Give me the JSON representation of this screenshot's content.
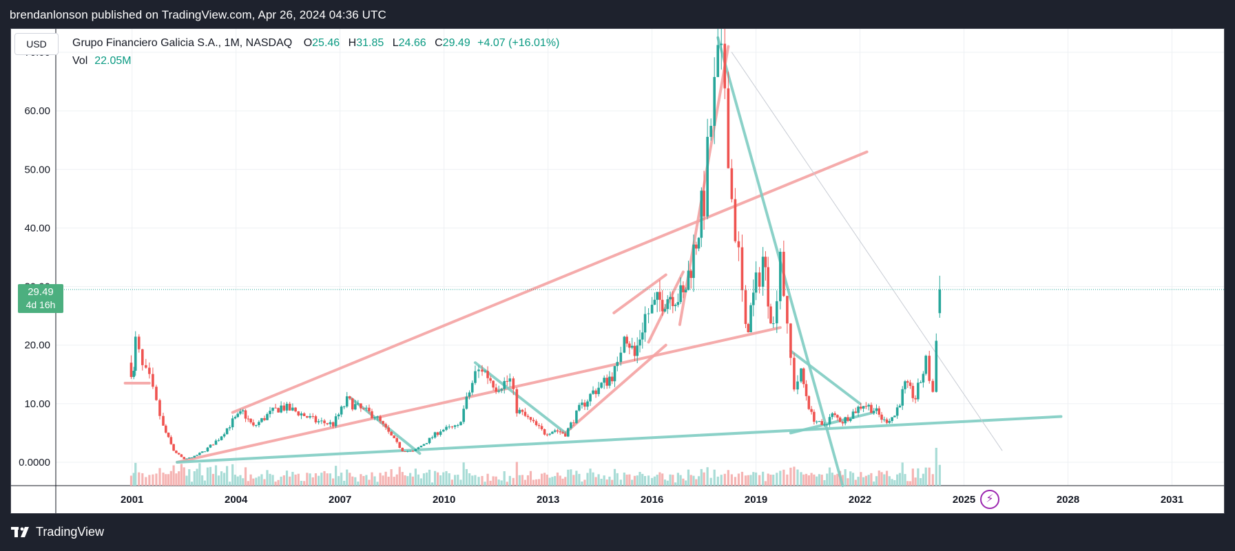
{
  "header": {
    "title": "brendanlonson published on TradingView.com, Apr 26, 2024 04:36 UTC"
  },
  "toolbar": {
    "currency": "USD"
  },
  "legend": {
    "symbol": "Grupo Financiero Galicia S.A., 1M, NASDAQ",
    "open_label": "O",
    "open": "25.46",
    "high_label": "H",
    "high": "31.85",
    "low_label": "L",
    "low": "24.66",
    "close_label": "C",
    "close": "29.49",
    "change": "+4.07 (+16.01%)",
    "vol_label": "Vol",
    "vol": "22.05M"
  },
  "price_tag": {
    "price": "29.49",
    "countdown": "4d 16h"
  },
  "footer": {
    "brand": "TradingView"
  },
  "colors": {
    "up": "#26a69a",
    "down": "#ef5350",
    "trend_red": "#f4a3a3",
    "trend_teal": "#7fcdc3",
    "price_tag": "#4caf7f",
    "accent_green": "#089981"
  },
  "chart_data": {
    "type": "candlestick",
    "interval": "1M",
    "y_ticks": [
      "70.00",
      "60.00",
      "50.00",
      "40.00",
      "30.00",
      "20.00",
      "10.00",
      "0.0000"
    ],
    "x_ticks": [
      "2001",
      "2004",
      "2007",
      "2010",
      "2013",
      "2016",
      "2019",
      "2022",
      "2025",
      "2028",
      "2031"
    ],
    "ylim": [
      -4,
      74
    ],
    "xlim": [
      1998.8,
      2032.5
    ],
    "last_close": 29.49,
    "price_path": [
      [
        2000.9,
        17
      ],
      [
        2001.05,
        15
      ],
      [
        2001.1,
        20.5
      ],
      [
        2001.3,
        16
      ],
      [
        2001.5,
        14
      ],
      [
        2001.7,
        10
      ],
      [
        2001.9,
        6
      ],
      [
        2002.2,
        2
      ],
      [
        2002.5,
        0.5
      ],
      [
        2002.8,
        1
      ],
      [
        2003.1,
        2
      ],
      [
        2003.5,
        4
      ],
      [
        2003.9,
        7
      ],
      [
        2004.2,
        8.5
      ],
      [
        2004.5,
        6
      ],
      [
        2004.9,
        8
      ],
      [
        2005.3,
        9.5
      ],
      [
        2005.8,
        8.5
      ],
      [
        2006.3,
        7
      ],
      [
        2006.8,
        6.5
      ],
      [
        2007.2,
        10.5
      ],
      [
        2007.6,
        9
      ],
      [
        2008.0,
        8
      ],
      [
        2008.4,
        5
      ],
      [
        2008.8,
        2
      ],
      [
        2009.1,
        1.8
      ],
      [
        2009.5,
        3.5
      ],
      [
        2009.9,
        5.5
      ],
      [
        2010.4,
        6
      ],
      [
        2010.9,
        15
      ],
      [
        2011.1,
        16
      ],
      [
        2011.5,
        13
      ],
      [
        2011.9,
        14
      ],
      [
        2012.1,
        9
      ],
      [
        2012.5,
        7
      ],
      [
        2012.9,
        5
      ],
      [
        2013.2,
        5.5
      ],
      [
        2013.5,
        4.8
      ],
      [
        2013.9,
        9
      ],
      [
        2014.3,
        12
      ],
      [
        2014.7,
        14
      ],
      [
        2015.0,
        16
      ],
      [
        2015.2,
        23
      ],
      [
        2015.5,
        18
      ],
      [
        2015.8,
        25
      ],
      [
        2016.0,
        26
      ],
      [
        2016.3,
        28
      ],
      [
        2016.6,
        29
      ],
      [
        2016.9,
        28
      ],
      [
        2017.2,
        36
      ],
      [
        2017.5,
        45
      ],
      [
        2017.7,
        58
      ],
      [
        2017.9,
        67
      ],
      [
        2018.1,
        65
      ],
      [
        2018.3,
        45
      ],
      [
        2018.5,
        35
      ],
      [
        2018.7,
        22
      ],
      [
        2019.0,
        30
      ],
      [
        2019.2,
        35
      ],
      [
        2019.5,
        23
      ],
      [
        2019.7,
        37
      ],
      [
        2019.9,
        22
      ],
      [
        2020.1,
        13
      ],
      [
        2020.3,
        15
      ],
      [
        2020.6,
        8
      ],
      [
        2020.9,
        6
      ],
      [
        2021.2,
        8
      ],
      [
        2021.5,
        7
      ],
      [
        2021.8,
        8.5
      ],
      [
        2022.1,
        10
      ],
      [
        2022.4,
        9
      ],
      [
        2022.7,
        7
      ],
      [
        2023.0,
        8
      ],
      [
        2023.3,
        13
      ],
      [
        2023.6,
        11
      ],
      [
        2023.9,
        17
      ],
      [
        2024.1,
        12
      ],
      [
        2024.3,
        29.49
      ]
    ],
    "trendlines": [
      {
        "color": "red",
        "from": [
          2000.8,
          13.5
        ],
        "to": [
          2001.5,
          13.5
        ]
      },
      {
        "color": "red",
        "from": [
          2003.9,
          8.5
        ],
        "to": [
          2022.2,
          53
        ]
      },
      {
        "color": "red",
        "from": [
          2002.3,
          0
        ],
        "to": [
          2019.7,
          23
        ]
      },
      {
        "color": "red",
        "from": [
          2013.5,
          5
        ],
        "to": [
          2016.4,
          20
        ]
      },
      {
        "color": "red",
        "from": [
          2015.9,
          20.5
        ],
        "to": [
          2016.9,
          32.5
        ]
      },
      {
        "color": "red",
        "from": [
          2014.9,
          25.5
        ],
        "to": [
          2016.4,
          32
        ]
      },
      {
        "color": "red",
        "from": [
          2016.8,
          23.5
        ],
        "to": [
          2018.2,
          71
        ]
      },
      {
        "color": "teal",
        "from": [
          2002.3,
          0
        ],
        "to": [
          2027.8,
          7.8
        ]
      },
      {
        "color": "teal",
        "from": [
          2007.3,
          11
        ],
        "to": [
          2009.3,
          1.5
        ]
      },
      {
        "color": "teal",
        "from": [
          2010.9,
          17
        ],
        "to": [
          2013.5,
          5
        ]
      },
      {
        "color": "teal",
        "from": [
          2017.9,
          72.5
        ],
        "to": [
          2021.5,
          -4
        ]
      },
      {
        "color": "teal",
        "from": [
          2020.0,
          19
        ],
        "to": [
          2022.0,
          10
        ]
      },
      {
        "color": "teal",
        "from": [
          2020.0,
          5
        ],
        "to": [
          2022.4,
          8.5
        ]
      },
      {
        "color": "thin",
        "from": [
          2018.3,
          70
        ],
        "to": [
          2026.1,
          2
        ]
      }
    ]
  }
}
